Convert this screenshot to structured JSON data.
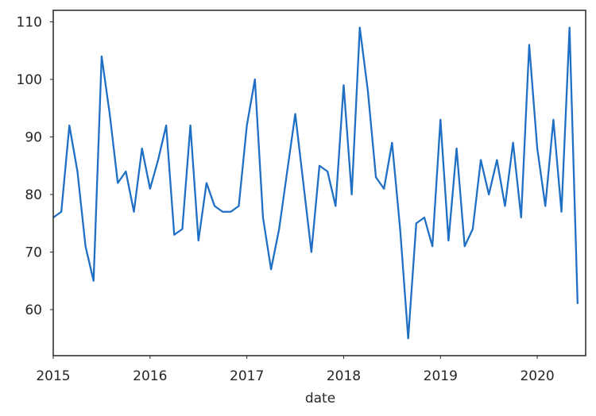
{
  "chart_data": {
    "type": "line",
    "title": "",
    "xlabel": "date",
    "ylabel": "",
    "xlim": [
      "2015-01",
      "2020-07"
    ],
    "ylim": [
      52,
      112
    ],
    "grid": false,
    "legend": "none",
    "x_ticks": [
      {
        "label": "2015",
        "value": "2015-01"
      },
      {
        "label": "2016",
        "value": "2016-01"
      },
      {
        "label": "2017",
        "value": "2017-01"
      },
      {
        "label": "2018",
        "value": "2018-01"
      },
      {
        "label": "2019",
        "value": "2019-01"
      },
      {
        "label": "2020",
        "value": "2020-01"
      }
    ],
    "y_ticks": [
      {
        "label": "60",
        "value": 60
      },
      {
        "label": "70",
        "value": 70
      },
      {
        "label": "80",
        "value": 80
      },
      {
        "label": "90",
        "value": 90
      },
      {
        "label": "100",
        "value": 100
      },
      {
        "label": "110",
        "value": 110
      }
    ],
    "series": [
      {
        "color": "#1f6fc5",
        "points": [
          [
            "2015-01",
            76
          ],
          [
            "2015-02",
            77
          ],
          [
            "2015-03",
            92
          ],
          [
            "2015-04",
            84
          ],
          [
            "2015-05",
            71
          ],
          [
            "2015-06",
            65
          ],
          [
            "2015-07",
            104
          ],
          [
            "2015-08",
            94
          ],
          [
            "2015-09",
            82
          ],
          [
            "2015-10",
            84
          ],
          [
            "2015-11",
            77
          ],
          [
            "2015-12",
            88
          ],
          [
            "2016-01",
            81
          ],
          [
            "2016-02",
            86
          ],
          [
            "2016-03",
            92
          ],
          [
            "2016-04",
            73
          ],
          [
            "2016-05",
            74
          ],
          [
            "2016-06",
            92
          ],
          [
            "2016-07",
            72
          ],
          [
            "2016-08",
            82
          ],
          [
            "2016-09",
            78
          ],
          [
            "2016-10",
            77
          ],
          [
            "2016-11",
            77
          ],
          [
            "2016-12",
            78
          ],
          [
            "2017-01",
            92
          ],
          [
            "2017-02",
            100
          ],
          [
            "2017-03",
            76
          ],
          [
            "2017-04",
            67
          ],
          [
            "2017-05",
            74
          ],
          [
            "2017-06",
            84
          ],
          [
            "2017-07",
            94
          ],
          [
            "2017-08",
            82
          ],
          [
            "2017-09",
            70
          ],
          [
            "2017-10",
            85
          ],
          [
            "2017-11",
            84
          ],
          [
            "2017-12",
            78
          ],
          [
            "2018-01",
            99
          ],
          [
            "2018-02",
            80
          ],
          [
            "2018-03",
            109
          ],
          [
            "2018-04",
            98
          ],
          [
            "2018-05",
            83
          ],
          [
            "2018-06",
            81
          ],
          [
            "2018-07",
            89
          ],
          [
            "2018-08",
            74
          ],
          [
            "2018-09",
            55
          ],
          [
            "2018-10",
            75
          ],
          [
            "2018-11",
            76
          ],
          [
            "2018-12",
            71
          ],
          [
            "2019-01",
            93
          ],
          [
            "2019-02",
            72
          ],
          [
            "2019-03",
            88
          ],
          [
            "2019-04",
            71
          ],
          [
            "2019-05",
            74
          ],
          [
            "2019-06",
            86
          ],
          [
            "2019-07",
            80
          ],
          [
            "2019-08",
            86
          ],
          [
            "2019-09",
            78
          ],
          [
            "2019-10",
            89
          ],
          [
            "2019-11",
            76
          ],
          [
            "2019-12",
            106
          ],
          [
            "2020-01",
            88
          ],
          [
            "2020-02",
            78
          ],
          [
            "2020-03",
            93
          ],
          [
            "2020-04",
            77
          ],
          [
            "2020-05",
            109
          ],
          [
            "2020-06",
            61
          ]
        ]
      }
    ]
  }
}
